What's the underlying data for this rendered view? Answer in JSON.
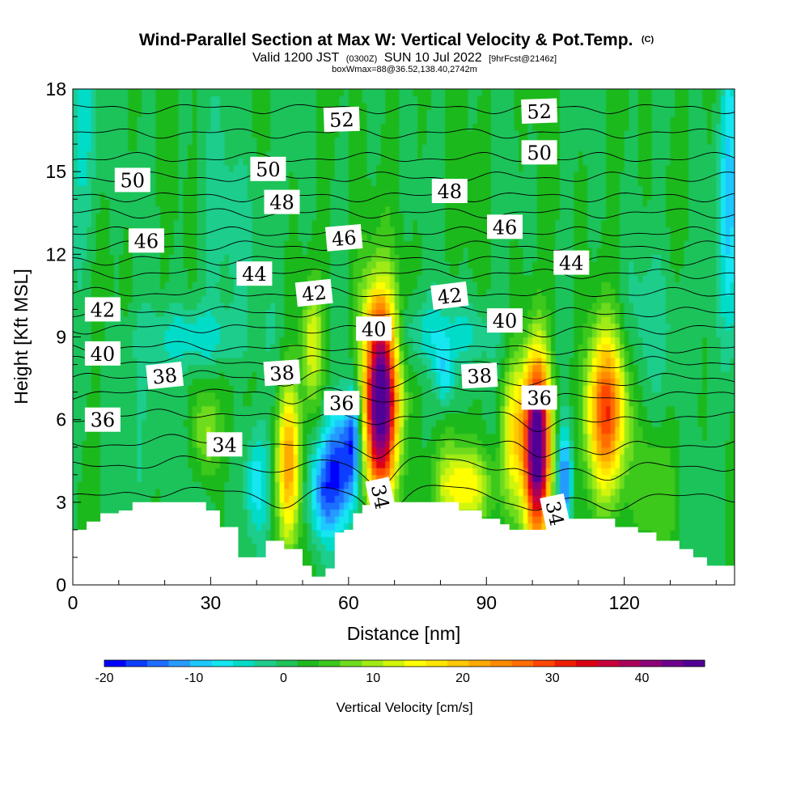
{
  "chart_data": {
    "type": "heatmap",
    "title": "Wind-Parallel Section at Max W: Vertical Velocity & Pot.Temp.",
    "title_mark": "(C)",
    "subtitle": {
      "part1": "Valid 1200 JST",
      "part2": "(0300Z)",
      "part3": "SUN 10 Jul 2022",
      "part4": "[9hrFcst@2146z]"
    },
    "subtitle2": "boxWmax=88@36.52,138.40,2742m",
    "xlabel": "Distance [nm]",
    "ylabel": "Height [Kft MSL]",
    "xlim": [
      0,
      144
    ],
    "ylim": [
      0,
      18
    ],
    "x_ticks": [
      0,
      30,
      60,
      90,
      120
    ],
    "y_ticks": [
      0,
      3,
      6,
      9,
      12,
      15,
      18
    ],
    "colorbar": {
      "title": "Vertical Velocity [cm/s]",
      "min": -20,
      "max": 47,
      "ticks": [
        -20,
        -10,
        0,
        10,
        20,
        30,
        40
      ],
      "colors": [
        "#0000ff",
        "#0d3dff",
        "#1e6eff",
        "#289bff",
        "#1ec8ff",
        "#14e6f0",
        "#00dcc8",
        "#1ecd8c",
        "#1ec35a",
        "#1eb91e",
        "#3cc81e",
        "#6edc1e",
        "#a0eb14",
        "#d2f50a",
        "#ffff00",
        "#ffe600",
        "#ffc800",
        "#ffaa00",
        "#ff8c00",
        "#ff6e00",
        "#ff4600",
        "#f01e00",
        "#dc0014",
        "#c8003c",
        "#aa005a",
        "#8c0078",
        "#6e008c",
        "#500096"
      ]
    },
    "terrain": [
      [
        0,
        2.0
      ],
      [
        3,
        2.0
      ],
      [
        3,
        2.3
      ],
      [
        6,
        2.3
      ],
      [
        6,
        2.6
      ],
      [
        10,
        2.6
      ],
      [
        10,
        2.7
      ],
      [
        13,
        2.7
      ],
      [
        13,
        3.0
      ],
      [
        29,
        3.0
      ],
      [
        29,
        2.7
      ],
      [
        32,
        2.7
      ],
      [
        32,
        2.1
      ],
      [
        36,
        2.1
      ],
      [
        36,
        1.0
      ],
      [
        42,
        1.0
      ],
      [
        42,
        1.6
      ],
      [
        46,
        1.6
      ],
      [
        46,
        1.3
      ],
      [
        50,
        1.3
      ],
      [
        50,
        0.7
      ],
      [
        52,
        0.7
      ],
      [
        52,
        0.3
      ],
      [
        55,
        0.3
      ],
      [
        55,
        0.6
      ],
      [
        57,
        0.6
      ],
      [
        57,
        1.9
      ],
      [
        59,
        1.9
      ],
      [
        59,
        2.0
      ],
      [
        61,
        2.0
      ],
      [
        61,
        2.6
      ],
      [
        63,
        2.6
      ],
      [
        63,
        2.9
      ],
      [
        66,
        2.9
      ],
      [
        66,
        3.0
      ],
      [
        84,
        3.0
      ],
      [
        84,
        2.7
      ],
      [
        89,
        2.7
      ],
      [
        89,
        2.4
      ],
      [
        93,
        2.4
      ],
      [
        93,
        2.2
      ],
      [
        95,
        2.2
      ],
      [
        95,
        2.0
      ],
      [
        103,
        2.0
      ],
      [
        103,
        2.3
      ],
      [
        107,
        2.3
      ],
      [
        107,
        2.4
      ],
      [
        118,
        2.4
      ],
      [
        118,
        2.1
      ],
      [
        123,
        2.1
      ],
      [
        123,
        1.9
      ],
      [
        127,
        1.9
      ],
      [
        127,
        1.6
      ],
      [
        132,
        1.6
      ],
      [
        132,
        1.3
      ],
      [
        135,
        1.3
      ],
      [
        135,
        1.0
      ],
      [
        138,
        1.0
      ],
      [
        138,
        0.7
      ],
      [
        144,
        0.7
      ],
      [
        144,
        0
      ]
    ],
    "w_cells": [
      {
        "x": 67,
        "y": 6.7,
        "sx": 2.6,
        "sy": 2.4,
        "w": 50
      },
      {
        "x": 101,
        "y": 5.0,
        "sx": 2.0,
        "sy": 2.3,
        "w": 48
      },
      {
        "x": 116,
        "y": 6.3,
        "sx": 3.0,
        "sy": 2.0,
        "w": 28
      },
      {
        "x": 47,
        "y": 4.5,
        "sx": 1.8,
        "sy": 2.0,
        "w": 22
      },
      {
        "x": 52,
        "y": 8.7,
        "sx": 1.6,
        "sy": 1.4,
        "w": 11
      },
      {
        "x": 29,
        "y": 5.5,
        "sx": 2.0,
        "sy": 1.3,
        "w": 10
      },
      {
        "x": 85,
        "y": 3.6,
        "sx": 4.5,
        "sy": 1.0,
        "w": 14
      },
      {
        "x": 96,
        "y": 5.5,
        "sx": 2.0,
        "sy": 1.8,
        "w": 14
      },
      {
        "x": 66,
        "y": 9.7,
        "sx": 2.2,
        "sy": 0.8,
        "w": 6
      },
      {
        "x": 58,
        "y": 4.2,
        "sx": 2.8,
        "sy": 1.5,
        "w": -18
      },
      {
        "x": 61,
        "y": 5.6,
        "sx": 1.2,
        "sy": 1.3,
        "w": -14
      },
      {
        "x": 54,
        "y": 3.3,
        "sx": 2.0,
        "sy": 1.2,
        "w": -10
      },
      {
        "x": 40,
        "y": 3.7,
        "sx": 1.8,
        "sy": 1.5,
        "w": -10
      },
      {
        "x": 107,
        "y": 3.8,
        "sx": 1.1,
        "sy": 1.3,
        "w": -16
      },
      {
        "x": 81,
        "y": 7.6,
        "sx": 1.4,
        "sy": 0.8,
        "w": -9
      },
      {
        "x": 26,
        "y": 9.0,
        "sx": 8.0,
        "sy": 0.8,
        "w": -6
      },
      {
        "x": 80,
        "y": 9.1,
        "sx": 9.0,
        "sy": 0.9,
        "w": -6
      },
      {
        "x": 143,
        "y": 14.5,
        "sx": 1.5,
        "sy": 4.0,
        "w": -10
      },
      {
        "x": 2,
        "y": 16.0,
        "sx": 3.0,
        "sy": 3.0,
        "w": -5
      },
      {
        "x": 63,
        "y": 11.0,
        "sx": 2.0,
        "sy": 2.0,
        "w": 3
      },
      {
        "x": 35,
        "y": 13.0,
        "sx": 6.0,
        "sy": 3.0,
        "w": -3
      },
      {
        "x": 127,
        "y": 9.5,
        "sx": 7.0,
        "sy": 2.0,
        "w": -3
      },
      {
        "x": 16,
        "y": 7.0,
        "sx": 5.0,
        "sy": 1.5,
        "w": -2
      },
      {
        "x": 126,
        "y": 3.5,
        "sx": 3.0,
        "sy": 1.5,
        "w": 5
      },
      {
        "x": 22,
        "y": 4.0,
        "sx": 6.0,
        "sy": 1.2,
        "w": -2
      }
    ],
    "theta_levels": [
      {
        "value": 33,
        "base": 3.2
      },
      {
        "value": 34,
        "base": 4.3
      },
      {
        "value": 35,
        "base": 5.1
      },
      {
        "value": 36,
        "base": 6.1
      },
      {
        "value": 37,
        "base": 6.9
      },
      {
        "value": 38,
        "base": 7.5
      },
      {
        "value": 39,
        "base": 8.1
      },
      {
        "value": 40,
        "base": 8.6
      },
      {
        "value": 41,
        "base": 9.3
      },
      {
        "value": 42,
        "base": 9.9
      },
      {
        "value": 43,
        "base": 10.6
      },
      {
        "value": 44,
        "base": 11.3
      },
      {
        "value": 45,
        "base": 11.8
      },
      {
        "value": 46,
        "base": 12.3
      },
      {
        "value": 47,
        "base": 12.8
      },
      {
        "value": 48,
        "base": 13.5
      },
      {
        "value": 49,
        "base": 14.1
      },
      {
        "value": 50,
        "base": 14.8
      },
      {
        "value": 51,
        "base": 15.5
      },
      {
        "value": 52,
        "base": 16.4
      },
      {
        "value": 53,
        "base": 17.3
      }
    ],
    "contour_labels": [
      {
        "text": "52",
        "x": 58.5,
        "y": 16.9,
        "angle": -2
      },
      {
        "text": "52",
        "x": 101.5,
        "y": 17.2,
        "angle": -2
      },
      {
        "text": "50",
        "x": 42.5,
        "y": 15.1,
        "angle": 0
      },
      {
        "text": "50",
        "x": 101.5,
        "y": 15.7,
        "angle": 0
      },
      {
        "text": "50",
        "x": 13,
        "y": 14.7,
        "angle": 0
      },
      {
        "text": "48",
        "x": 45.5,
        "y": 13.9,
        "angle": 0
      },
      {
        "text": "48",
        "x": 82,
        "y": 14.3,
        "angle": 0
      },
      {
        "text": "46",
        "x": 16,
        "y": 12.5,
        "angle": 0
      },
      {
        "text": "46",
        "x": 59,
        "y": 12.6,
        "angle": -5
      },
      {
        "text": "46",
        "x": 94,
        "y": 13.0,
        "angle": 0
      },
      {
        "text": "44",
        "x": 39.5,
        "y": 11.3,
        "angle": 0
      },
      {
        "text": "44",
        "x": 108.5,
        "y": 11.7,
        "angle": 0
      },
      {
        "text": "42",
        "x": 6.5,
        "y": 10.0,
        "angle": 0
      },
      {
        "text": "42",
        "x": 52.5,
        "y": 10.6,
        "angle": -6
      },
      {
        "text": "42",
        "x": 82,
        "y": 10.5,
        "angle": -7
      },
      {
        "text": "40",
        "x": 6.5,
        "y": 8.4,
        "angle": 0
      },
      {
        "text": "40",
        "x": 65.5,
        "y": 9.3,
        "angle": 0
      },
      {
        "text": "40",
        "x": 94,
        "y": 9.6,
        "angle": 0
      },
      {
        "text": "38",
        "x": 20,
        "y": 7.6,
        "angle": -6
      },
      {
        "text": "38",
        "x": 45.5,
        "y": 7.7,
        "angle": -4
      },
      {
        "text": "38",
        "x": 88.5,
        "y": 7.6,
        "angle": -3
      },
      {
        "text": "36",
        "x": 6.5,
        "y": 6.0,
        "angle": 0
      },
      {
        "text": "36",
        "x": 58.5,
        "y": 6.6,
        "angle": 0
      },
      {
        "text": "36",
        "x": 101.5,
        "y": 6.8,
        "angle": 0
      },
      {
        "text": "34",
        "x": 33,
        "y": 5.1,
        "angle": 0
      },
      {
        "text": "34",
        "x": 67,
        "y": 3.2,
        "angle": 78
      },
      {
        "text": "34",
        "x": 105,
        "y": 2.6,
        "angle": 78
      }
    ]
  }
}
